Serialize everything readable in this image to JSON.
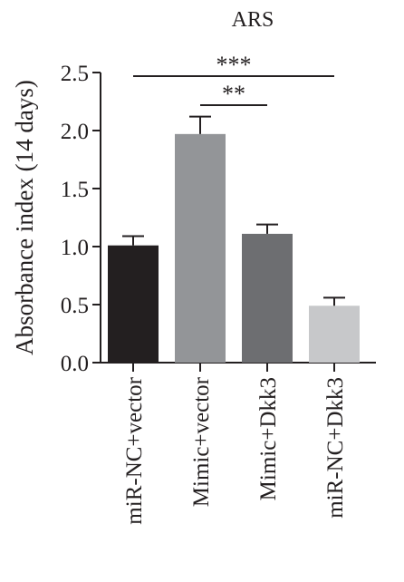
{
  "chart_data": {
    "type": "bar",
    "title": "ARS",
    "ylabel": "Absorbance index (14 days)",
    "xlabel": "",
    "ylim": [
      0,
      2.5
    ],
    "yticks": [
      "0.0",
      "0.5",
      "1.0",
      "1.5",
      "2.0",
      "2.5"
    ],
    "categories": [
      "miR-NC+vector",
      "Mimic+vector",
      "Mimic+Dkk3",
      "miR-NC+Dkk3"
    ],
    "values": [
      1.01,
      1.97,
      1.11,
      0.49
    ],
    "errors": [
      0.08,
      0.15,
      0.08,
      0.07
    ],
    "bar_colors": [
      "#231f20",
      "#939598",
      "#6d6e71",
      "#c7c8ca"
    ],
    "significance": [
      {
        "from": 0,
        "to": 3,
        "label": "***"
      },
      {
        "from": 1,
        "to": 2,
        "label": "**"
      }
    ],
    "grid": false
  }
}
